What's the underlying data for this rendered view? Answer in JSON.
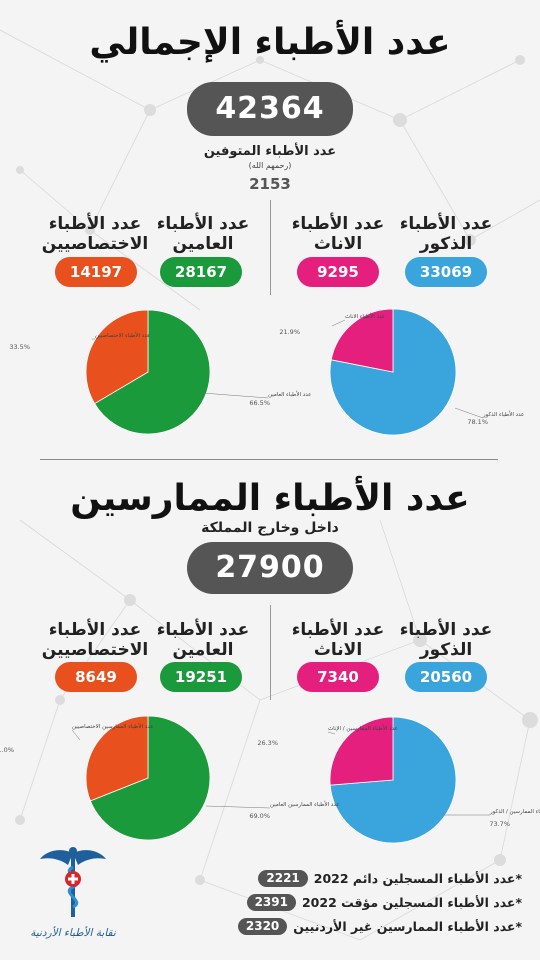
{
  "section1": {
    "title": "عدد الأطباء الإجمالي",
    "total": "42364",
    "deceased_label": "عدد الأطباء المتوفين",
    "deceased_sub": "(رحمهم الله)",
    "deceased_value": "2153",
    "males_label": [
      "عدد الأطباء",
      "الذكور"
    ],
    "males_value": "33069",
    "females_label": [
      "عدد الأطباء",
      "الاناث"
    ],
    "females_value": "9295",
    "general_label": [
      "عدد الأطباء",
      "العامين"
    ],
    "general_value": "28167",
    "specialist_label": [
      "عدد الأطباء",
      "الاختصاصيين"
    ],
    "specialist_value": "14197"
  },
  "section2": {
    "title": "عدد الأطباء الممارسين",
    "subtitle": "داخل وخارج المملكة",
    "total": "27900",
    "males_label": [
      "عدد الأطباء",
      "الذكور"
    ],
    "males_value": "20560",
    "females_label": [
      "عدد الأطباء",
      "الاناث"
    ],
    "females_value": "7340",
    "general_label": [
      "عدد الأطباء",
      "العامين"
    ],
    "general_value": "19251",
    "specialist_label": [
      "عدد الأطباء",
      "الاختصاصيين"
    ],
    "specialist_value": "8649"
  },
  "footnotes": [
    {
      "text": "*عدد الأطباء المسجلين دائم 2022",
      "value": "2221"
    },
    {
      "text": "*عدد الأطباء المسجلين مؤقت 2022",
      "value": "2391"
    },
    {
      "text": "*عدد الأطباء الممارسين غير الأردنيين",
      "value": "2320"
    }
  ],
  "logo_text": "نقابة الأطباء الأردنية",
  "colors": {
    "blue": "#3aa5dd",
    "pink": "#e51f7e",
    "green": "#1a9a3a",
    "orange": "#e8501d",
    "dark": "#555555"
  },
  "chart_data": [
    {
      "type": "pie",
      "categories": [
        "عدد الأطباء الذكور",
        "عدد الأطباء الاناث"
      ],
      "values": [
        78.1,
        21.9
      ],
      "colors": [
        "#3aa5dd",
        "#e51f7e"
      ]
    },
    {
      "type": "pie",
      "categories": [
        "عدد الأطباء العامين",
        "عدد الأطباء الاختصاصيين"
      ],
      "values": [
        66.5,
        33.5
      ],
      "colors": [
        "#1a9a3a",
        "#e8501d"
      ]
    },
    {
      "type": "pie",
      "categories": [
        "عدد الأطباء الممارسين / الذكور",
        "عدد الأطباء الممارسين / الإناث"
      ],
      "values": [
        73.7,
        26.3
      ],
      "colors": [
        "#3aa5dd",
        "#e51f7e"
      ]
    },
    {
      "type": "pie",
      "categories": [
        "عدد الأطباء الممارسين العامين",
        "عدد الأطباء الممارسين الاختصاصيين"
      ],
      "values": [
        69.0,
        31.0
      ],
      "colors": [
        "#1a9a3a",
        "#e8501d"
      ]
    }
  ]
}
